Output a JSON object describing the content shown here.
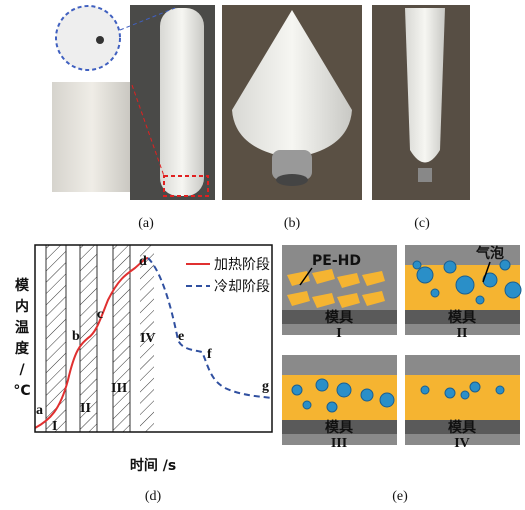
{
  "panels": {
    "a": "(a)",
    "b": "(b)",
    "c": "(c)",
    "d": "(d)",
    "e": "(e)"
  },
  "diagram_d": {
    "y_label_lines": [
      "模",
      "内",
      "温",
      "度",
      "/",
      "°C"
    ],
    "x_label": "时间 /s",
    "legend": [
      "加热阶段",
      "冷却阶段"
    ],
    "points": [
      "a",
      "b",
      "c",
      "d",
      "e",
      "f",
      "g"
    ],
    "stages": [
      "I",
      "II",
      "III",
      "IV"
    ]
  },
  "diagram_e": {
    "annotations": [
      "PE-HD",
      "气泡"
    ],
    "panels": [
      {
        "mold": "模具",
        "stage": "I"
      },
      {
        "mold": "模具",
        "stage": "II"
      },
      {
        "mold": "模具",
        "stage": "III"
      },
      {
        "mold": "模具",
        "stage": "IV"
      }
    ]
  }
}
